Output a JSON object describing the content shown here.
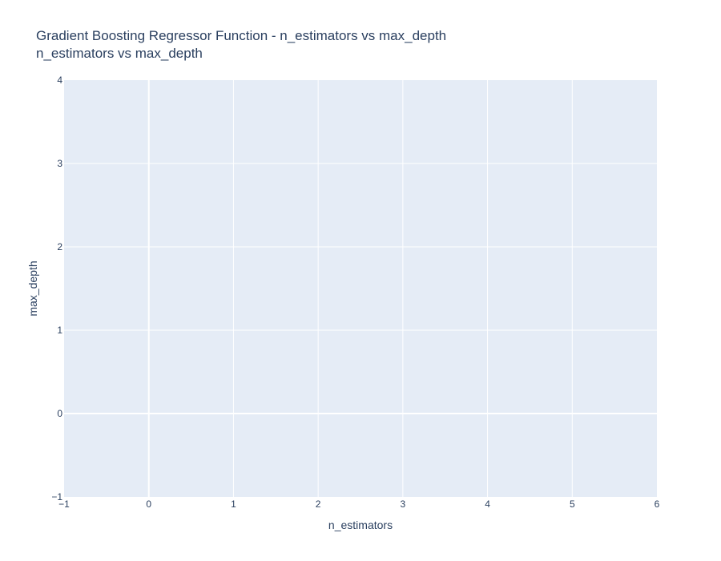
{
  "chart_data": {
    "type": "scatter",
    "title": "Gradient Boosting Regressor Function - n_estimators vs max_depth",
    "subtitle": "n_estimators vs max_depth",
    "xlabel": "n_estimators",
    "ylabel": "max_depth",
    "xlim": [
      -1,
      6
    ],
    "ylim": [
      -1,
      4
    ],
    "xticks": [
      "−1",
      "0",
      "1",
      "2",
      "3",
      "4",
      "5",
      "6"
    ],
    "yticks": [
      "−1",
      "0",
      "1",
      "2",
      "3",
      "4"
    ],
    "grid": true,
    "series": [],
    "colors": {
      "plot_background": "#e5ecf6",
      "gridline": "#ffffff",
      "text": "#2a3f5f"
    }
  }
}
